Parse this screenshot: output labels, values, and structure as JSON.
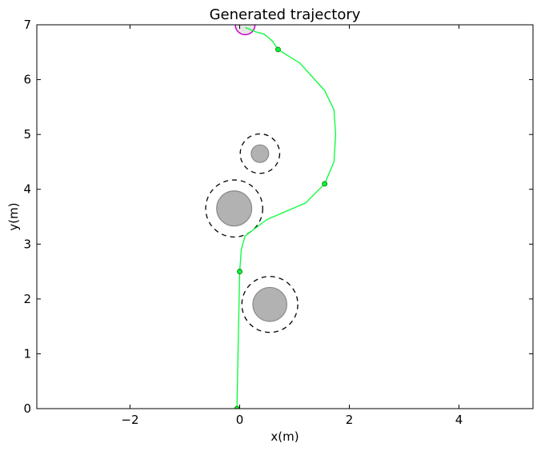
{
  "chart_data": {
    "type": "scatter",
    "title": "Generated trajectory",
    "xlabel": "x(m)",
    "ylabel": "y(m)",
    "xlim": [
      -3.7,
      5.35
    ],
    "ylim": [
      0,
      7
    ],
    "xticks": [
      -2,
      0,
      2,
      4
    ],
    "yticks": [
      0,
      1,
      2,
      3,
      4,
      5,
      6,
      7
    ],
    "xtick_labels": [
      "−2",
      "0",
      "2",
      "4"
    ],
    "ytick_labels": [
      "0",
      "1",
      "2",
      "3",
      "4",
      "5",
      "6",
      "7"
    ],
    "grid": false,
    "trajectory": {
      "color": "#00ff33",
      "x": [
        -0.05,
        -0.03,
        0.0,
        0.03,
        0.1,
        0.5,
        1.2,
        1.55,
        1.72,
        1.75,
        1.72,
        1.55,
        1.1,
        0.7,
        0.6,
        0.45,
        0.3,
        0.1
      ],
      "y": [
        0.0,
        1.0,
        2.5,
        2.9,
        3.15,
        3.45,
        3.75,
        4.1,
        4.5,
        5.0,
        5.45,
        5.8,
        6.3,
        6.55,
        6.7,
        6.83,
        6.87,
        6.95
      ]
    },
    "waypoints": {
      "color": "#00ff33",
      "x": [
        -0.05,
        0.0,
        1.55,
        0.7
      ],
      "y": [
        0.0,
        2.5,
        4.1,
        6.55
      ]
    },
    "obstacles": [
      {
        "x": -0.1,
        "y": 3.65,
        "r": 0.32,
        "safety_r": 0.52
      },
      {
        "x": 0.37,
        "y": 4.65,
        "r": 0.16,
        "safety_r": 0.36
      },
      {
        "x": 0.55,
        "y": 1.9,
        "r": 0.31,
        "safety_r": 0.51
      }
    ],
    "goal": {
      "x": 0.1,
      "y": 7.0,
      "r": 0.18,
      "color": "#cc00cc"
    }
  }
}
